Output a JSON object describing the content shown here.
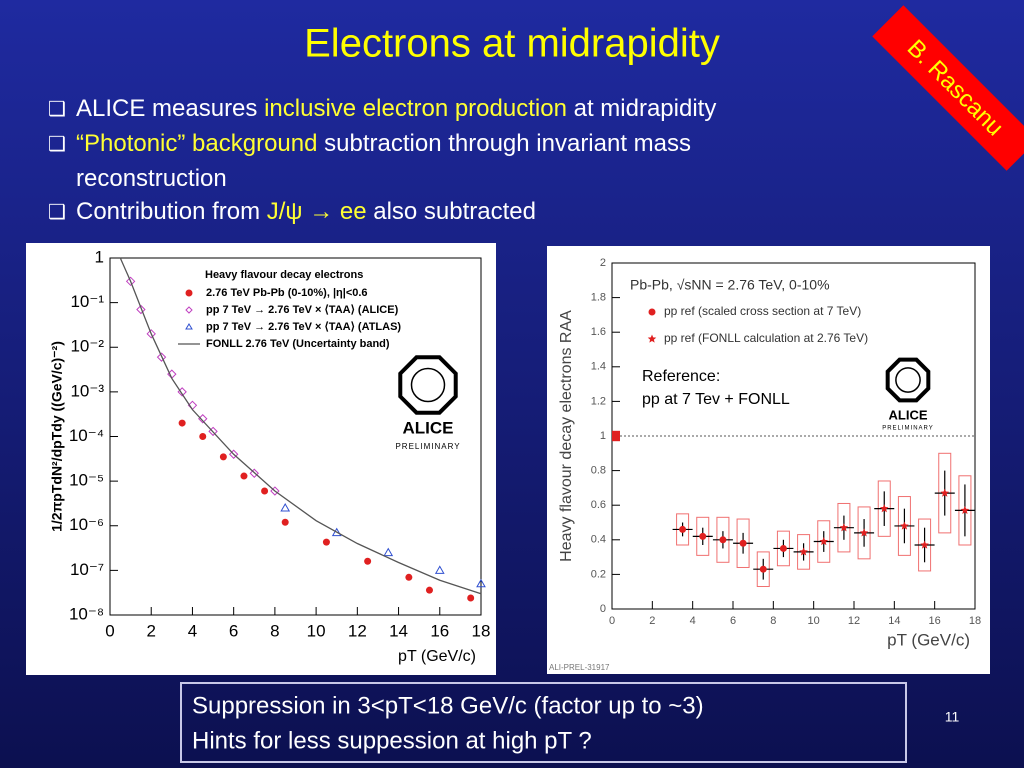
{
  "title": "Electrons at midrapidity",
  "author_tag": "B. Rascanu",
  "bullets": [
    [
      {
        "text": "ALICE measures ",
        "color": "#ffffff"
      },
      {
        "text": "inclusive electron production",
        "color": "#ffff33"
      },
      {
        "text": " at midrapidity",
        "color": "#ffffff"
      }
    ],
    [
      {
        "text": "“Photonic” background",
        "color": "#ffff33"
      },
      {
        "text": "  subtraction through invariant mass",
        "color": "#ffffff"
      }
    ],
    [
      {
        "text": "reconstruction",
        "color": "#ffffff"
      }
    ],
    [
      {
        "text": "Contribution from ",
        "color": "#ffffff"
      },
      {
        "text": "J/ψ → ee",
        "color": "#ffff33"
      },
      {
        "text": " also subtracted",
        "color": "#ffffff"
      }
    ]
  ],
  "summary": [
    "Suppression in 3<pT<18 GeV/c (factor up to ~3)",
    "Hints for less suppession at high pT ?"
  ],
  "page_number": "11",
  "chart_data": [
    {
      "type": "scatter",
      "log_y": true,
      "xlabel": "pT (GeV/c)",
      "ylabel": "1/2πpTdN²/dpTdy ((GeV/c)⁻²)",
      "xlim": [
        0,
        18
      ],
      "xticks": [
        0,
        2,
        4,
        6,
        8,
        10,
        12,
        14,
        16,
        18
      ],
      "ylim": [
        1e-08,
        1
      ],
      "yticks": [
        {
          "value": 1e-08,
          "label": "10⁻⁸"
        },
        {
          "value": 1e-07,
          "label": "10⁻⁷"
        },
        {
          "value": 1e-06,
          "label": "10⁻⁶"
        },
        {
          "value": 1e-05,
          "label": "10⁻⁵"
        },
        {
          "value": 0.0001,
          "label": "10⁻⁴"
        },
        {
          "value": 0.001,
          "label": "10⁻³"
        },
        {
          "value": 0.01,
          "label": "10⁻²"
        },
        {
          "value": 0.1,
          "label": "10⁻¹"
        },
        1
      ],
      "legend_title": "Heavy flavour decay electrons",
      "logo": [
        "ALICE",
        "PRELIMINARY"
      ],
      "series": [
        {
          "name": "2.76 TeV Pb-Pb (0-10%), |η|<0.6",
          "color": "#e02020",
          "marker": "circle",
          "x": [
            3.5,
            4.5,
            5.5,
            6.5,
            7.5,
            8.5,
            10.5,
            12.5,
            14.5,
            15.5,
            17.5
          ],
          "values": [
            0.0002,
            0.0001,
            3.5e-05,
            1.3e-05,
            6e-06,
            1.2e-06,
            4.3e-07,
            1.6e-07,
            7e-08,
            3.6e-08,
            2.4e-08
          ]
        },
        {
          "name": "pp 7 TeV → 2.76 TeV × ⟨TAA⟩ (ALICE)",
          "color": "#c040c0",
          "marker": "diamond",
          "x": [
            1,
            1.5,
            2,
            2.5,
            3,
            3.5,
            4,
            4.5,
            5,
            6,
            7,
            8
          ],
          "values": [
            0.3,
            0.07,
            0.02,
            0.006,
            0.0025,
            0.001,
            0.0005,
            0.00025,
            0.00013,
            4e-05,
            1.5e-05,
            6e-06
          ]
        },
        {
          "name": "pp 7 TeV → 2.76 TeV × ⟨TAA⟩ (ATLAS)",
          "color": "#3050d0",
          "marker": "triangle",
          "x": [
            8.5,
            11,
            13.5,
            16,
            18
          ],
          "values": [
            2.5e-06,
            7e-07,
            2.5e-07,
            1e-07,
            5e-08
          ]
        },
        {
          "name": "FONLL 2.76 TeV (Uncertainty band)",
          "color": "#555555",
          "marker": "line",
          "x": [
            0.5,
            1,
            2,
            3,
            4,
            6,
            8,
            10,
            12,
            14,
            16,
            18
          ],
          "values": [
            1,
            0.3,
            0.02,
            0.002,
            0.0004,
            4e-05,
            6e-06,
            1.3e-06,
            4e-07,
            1.5e-07,
            6e-08,
            3e-08
          ]
        }
      ]
    },
    {
      "type": "errorbar",
      "log_y": false,
      "xlabel": "pT (GeV/c)",
      "ylabel": "Heavy flavour decay electrons RAA",
      "xlim": [
        0,
        18
      ],
      "xticks": [
        0,
        2,
        4,
        6,
        8,
        10,
        12,
        14,
        16,
        18
      ],
      "ylim": [
        0,
        2
      ],
      "yticks": [
        0,
        0.2,
        0.4,
        0.6,
        0.8,
        1,
        1.2,
        1.4,
        1.6,
        1.8,
        2
      ],
      "subtitle": "Pb-Pb, √sNN = 2.76 TeV, 0-10%",
      "annotation": [
        "Reference:",
        "pp at 7 Tev + FONLL"
      ],
      "logo": [
        "ALICE",
        "PRELIMINARY"
      ],
      "footer": "ALI-PREL-31917",
      "reference_line": 1,
      "normalization": {
        "value": 1,
        "error": 0.03
      },
      "series": [
        {
          "name": "pp ref (scaled cross section at 7 TeV)",
          "color": "#e02020",
          "marker": "circle",
          "x": [
            3.5,
            4.5,
            5.5,
            6.5,
            7.5,
            8.5
          ],
          "values": [
            0.46,
            0.42,
            0.4,
            0.38,
            0.23,
            0.35
          ],
          "errors": [
            0.04,
            0.05,
            0.05,
            0.06,
            0.06,
            0.05
          ],
          "sys_errors": [
            0.09,
            0.11,
            0.13,
            0.14,
            0.1,
            0.1
          ]
        },
        {
          "name": "pp ref (FONLL calculation at 2.76 TeV)",
          "color": "#e02020",
          "marker": "star",
          "x": [
            9.5,
            10.5,
            11.5,
            12.5,
            13.5,
            14.5,
            15.5,
            16.5,
            17.5
          ],
          "values": [
            0.33,
            0.39,
            0.47,
            0.44,
            0.58,
            0.48,
            0.37,
            0.67,
            0.57
          ],
          "errors": [
            0.05,
            0.06,
            0.07,
            0.08,
            0.1,
            0.1,
            0.1,
            0.13,
            0.15
          ],
          "sys_errors": [
            0.1,
            0.12,
            0.14,
            0.15,
            0.16,
            0.17,
            0.15,
            0.23,
            0.2
          ]
        }
      ]
    }
  ]
}
